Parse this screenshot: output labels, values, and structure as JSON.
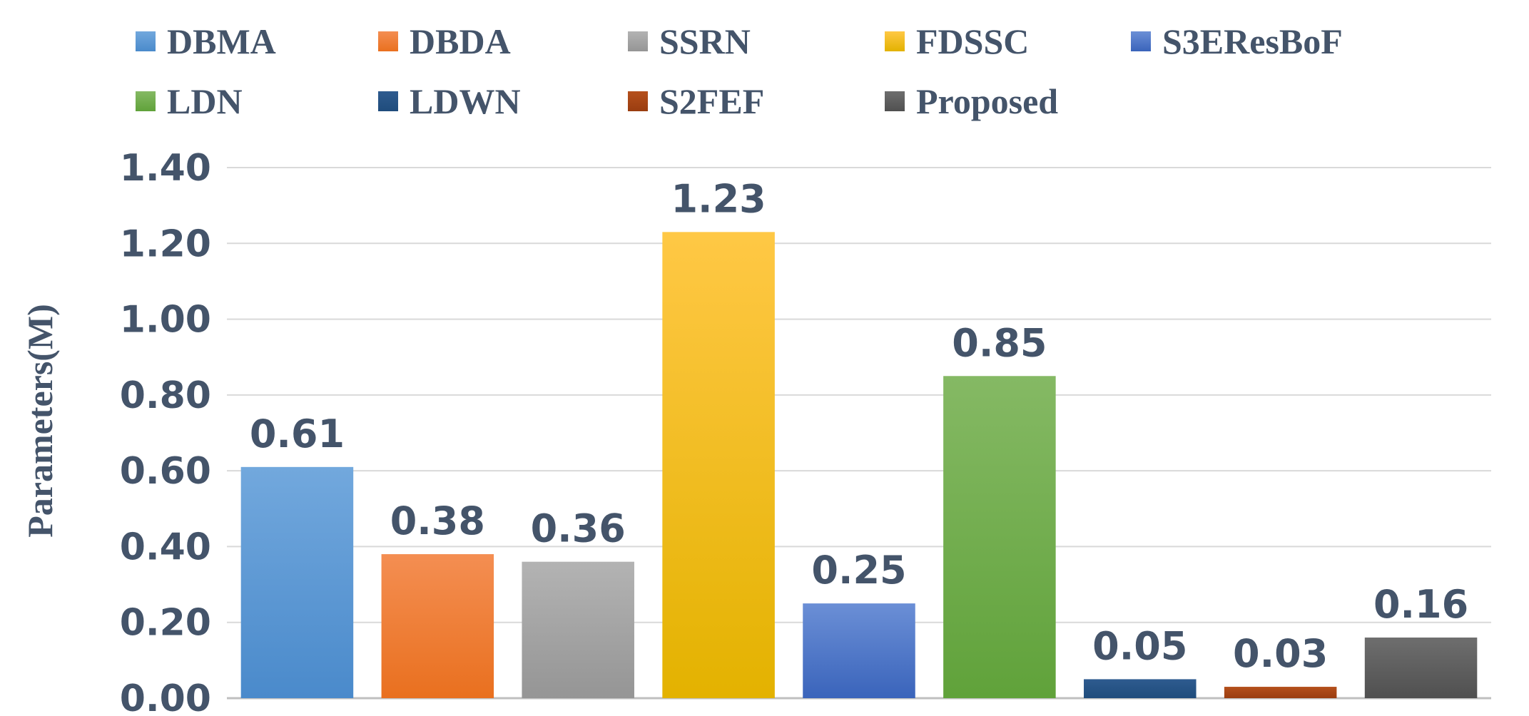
{
  "chart_data": {
    "type": "bar",
    "title": "",
    "xlabel": "",
    "ylabel": "Parameters(M)",
    "ylim": [
      0,
      1.4
    ],
    "yticks": [
      "0.00",
      "0.20",
      "0.40",
      "0.60",
      "0.80",
      "1.00",
      "1.20",
      "1.40"
    ],
    "categories": [
      "DBMA",
      "DBDA",
      "SSRN",
      "FDSSC",
      "S3EResBoF",
      "LDN",
      "LDWN",
      "S2FEF",
      "Proposed"
    ],
    "values": [
      0.61,
      0.38,
      0.36,
      1.23,
      0.25,
      0.85,
      0.05,
      0.03,
      0.16
    ],
    "value_labels": [
      "0.61",
      "0.38",
      "0.36",
      "1.23",
      "0.25",
      "0.85",
      "0.05",
      "0.03",
      "0.16"
    ],
    "colors": [
      {
        "top": "#72a8dd",
        "bottom": "#4a8acb"
      },
      {
        "top": "#f48e52",
        "bottom": "#e9701f"
      },
      {
        "top": "#b3b3b3",
        "bottom": "#959595"
      },
      {
        "top": "#ffc845",
        "bottom": "#e3b200"
      },
      {
        "top": "#6b8fd6",
        "bottom": "#3a64bb"
      },
      {
        "top": "#85b964",
        "bottom": "#60a23a"
      },
      {
        "top": "#2e5b8f",
        "bottom": "#1f4c7c"
      },
      {
        "top": "#b5501c",
        "bottom": "#9a3d10"
      },
      {
        "top": "#6e6e6e",
        "bottom": "#505050"
      }
    ],
    "legend_position": "top",
    "grid": true
  }
}
